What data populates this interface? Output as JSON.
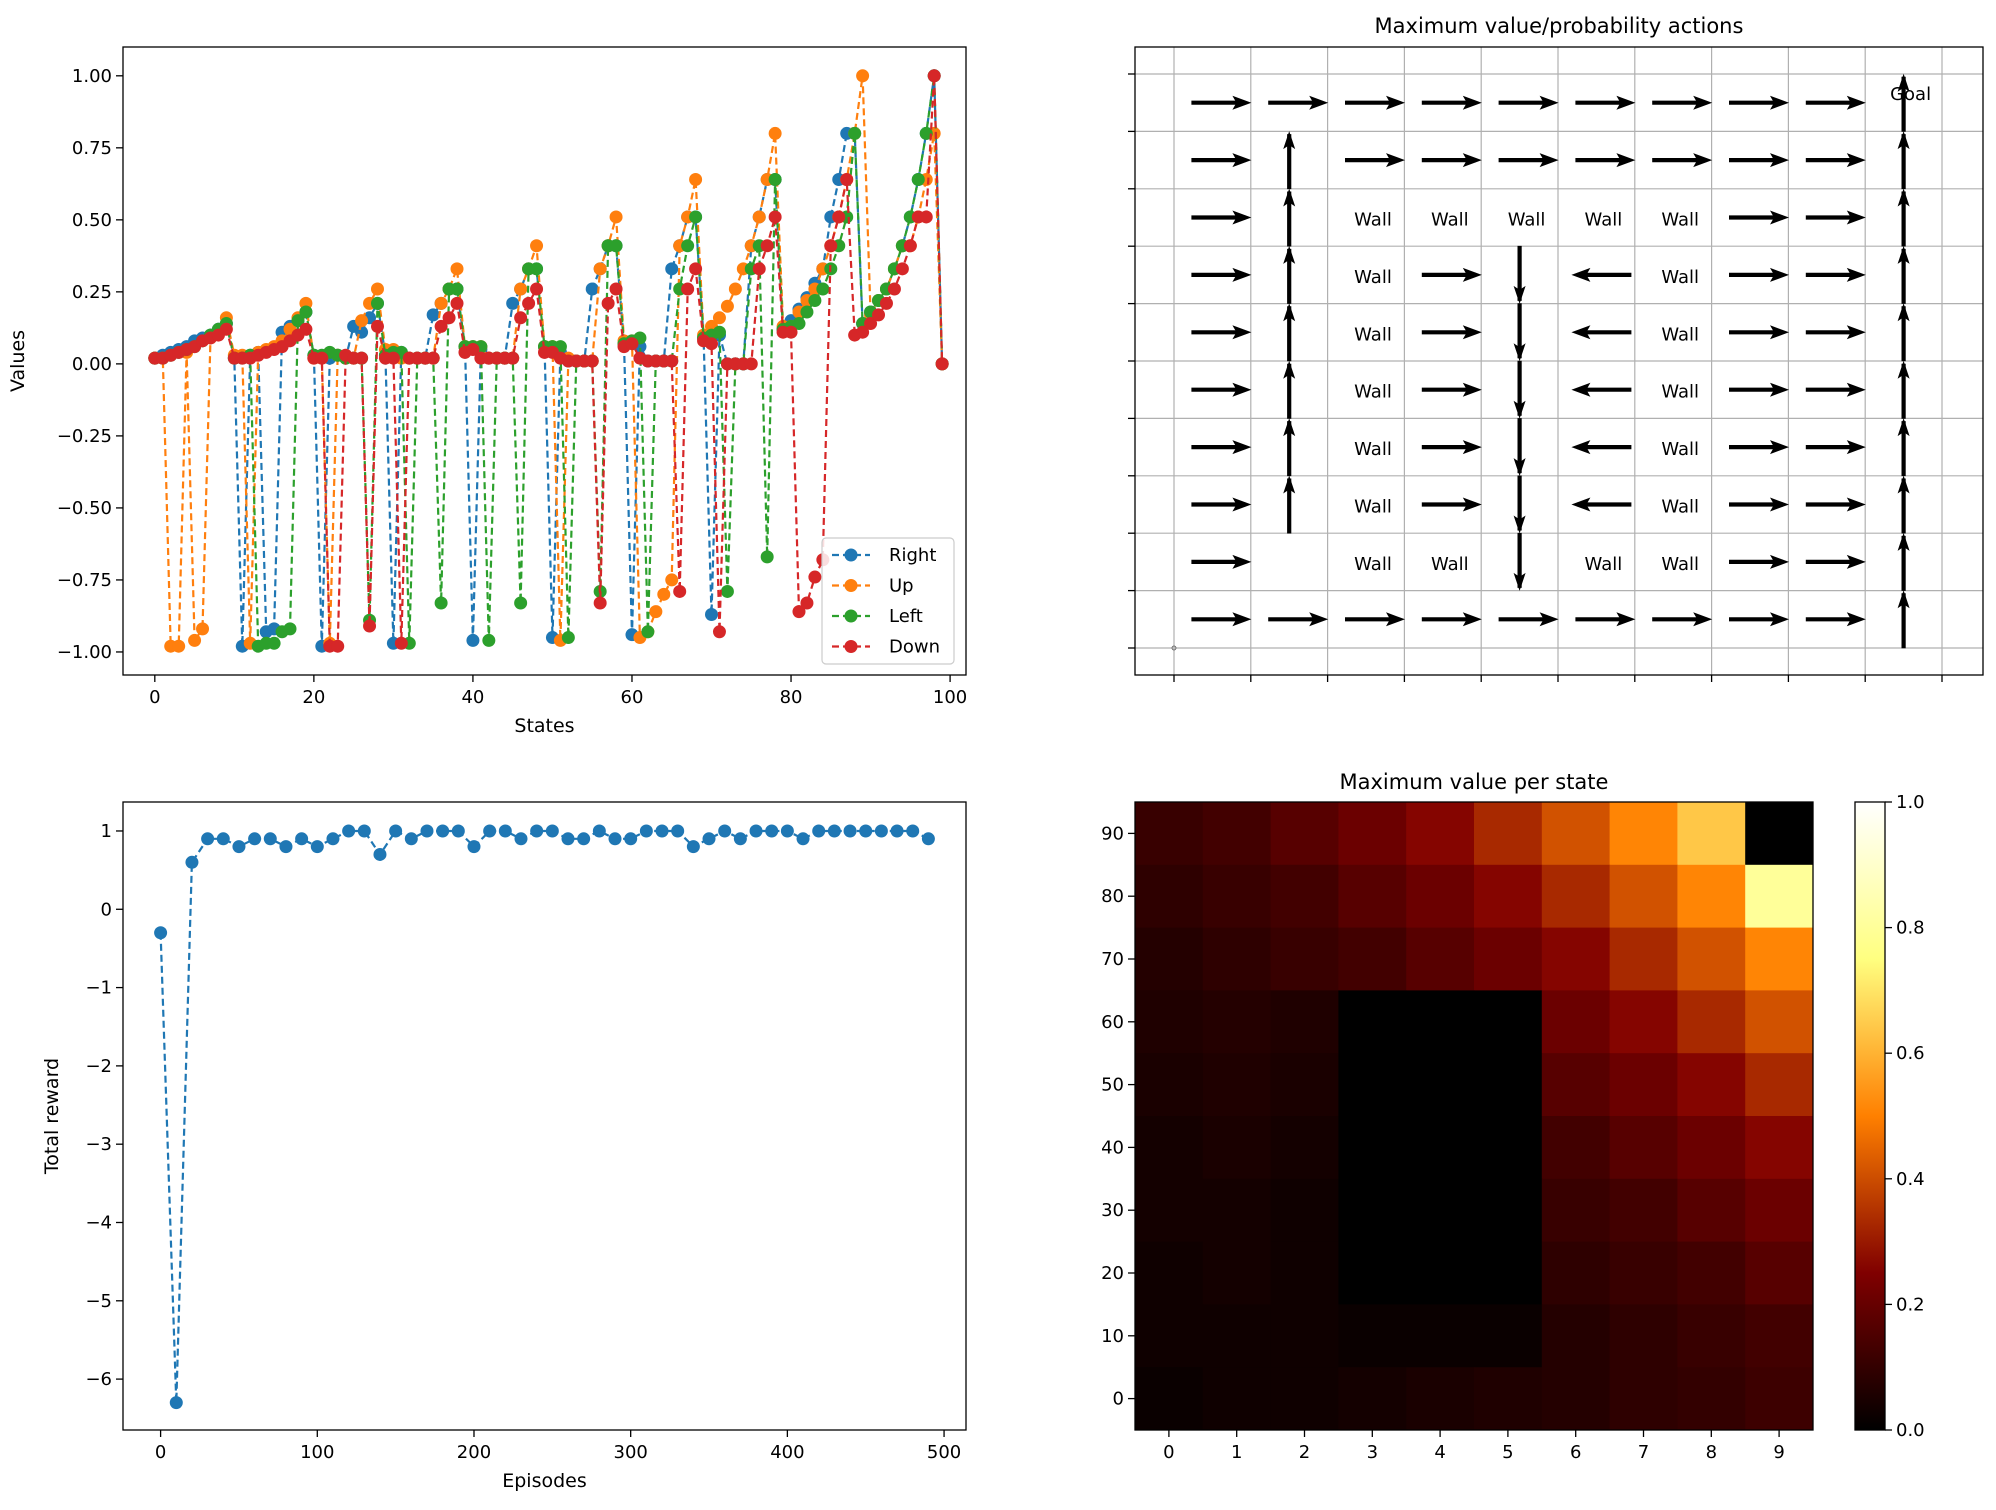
{
  "chart_data": [
    {
      "id": "state-values",
      "type": "line",
      "title": "",
      "xlabel": "States",
      "ylabel": "Values",
      "xlim": [
        -4,
        102
      ],
      "ylim": [
        -1.08,
        1.1
      ],
      "xticks": [
        0,
        20,
        40,
        60,
        80,
        100
      ],
      "xtick_labels": [
        "0",
        "20",
        "40",
        "60",
        "80",
        "100"
      ],
      "yticks": [
        -1.0,
        -0.75,
        -0.5,
        -0.25,
        0.0,
        0.25,
        0.5,
        0.75,
        1.0
      ],
      "ytick_labels": [
        "−1.00",
        "−0.75",
        "−0.50",
        "−0.25",
        "0.00",
        "0.25",
        "0.50",
        "0.75",
        "1.00"
      ],
      "legend_position": "bottom-right",
      "series": [
        {
          "name": "Right",
          "color": "#1f77b4",
          "values": [
            0.02,
            0.03,
            0.04,
            0.05,
            0.06,
            0.08,
            0.09,
            0.1,
            0.12,
            0.14,
            0.02,
            -0.98,
            0.03,
            0.04,
            -0.93,
            -0.92,
            0.11,
            0.13,
            0.15,
            0.18,
            0.03,
            -0.98,
            0.02,
            0.03,
            0.02,
            0.13,
            0.11,
            0.16,
            0.21,
            0.03,
            -0.97,
            0.04,
            0.02,
            0.02,
            0.02,
            0.17,
            0.21,
            0.26,
            0.26,
            0.06,
            -0.96,
            0.05,
            0.02,
            0.02,
            0.02,
            0.21,
            0.26,
            0.33,
            0.33,
            0.06,
            -0.95,
            0.04,
            0.01,
            0.01,
            0.01,
            0.26,
            0.33,
            0.41,
            0.41,
            0.07,
            -0.94,
            0.06,
            0.01,
            0.01,
            0.01,
            0.33,
            0.41,
            0.51,
            0.51,
            0.09,
            -0.87,
            0.1,
            0.0,
            0.0,
            0.0,
            0.41,
            0.51,
            0.64,
            0.64,
            0.12,
            0.15,
            0.19,
            0.23,
            0.28,
            0.33,
            0.51,
            0.64,
            0.8,
            0.8,
            0.14,
            0.18,
            0.22,
            0.26,
            0.33,
            0.41,
            0.51,
            0.64,
            0.8,
            1.0,
            0.0
          ]
        },
        {
          "name": "Up",
          "color": "#ff7f0e",
          "values": [
            0.02,
            0.02,
            -0.98,
            -0.98,
            0.04,
            -0.96,
            -0.92,
            0.09,
            0.11,
            0.16,
            0.03,
            0.03,
            -0.97,
            0.04,
            0.05,
            0.06,
            0.08,
            0.12,
            0.16,
            0.21,
            0.02,
            0.02,
            -0.97,
            0.03,
            0.02,
            0.02,
            0.15,
            0.21,
            0.26,
            0.05,
            0.05,
            0.02,
            0.02,
            0.02,
            0.02,
            0.02,
            0.21,
            0.26,
            0.33,
            0.06,
            0.06,
            0.06,
            0.02,
            0.02,
            0.02,
            0.02,
            0.26,
            0.33,
            0.41,
            0.06,
            0.06,
            -0.96,
            0.02,
            0.01,
            0.01,
            0.01,
            0.33,
            0.41,
            0.51,
            0.08,
            0.08,
            -0.95,
            -0.93,
            -0.86,
            -0.8,
            -0.75,
            0.41,
            0.51,
            0.64,
            0.1,
            0.13,
            0.16,
            0.2,
            0.26,
            0.33,
            0.41,
            0.51,
            0.64,
            0.8,
            0.13,
            0.13,
            0.18,
            0.22,
            0.26,
            0.33,
            0.41,
            0.51,
            0.64,
            0.8,
            1.0,
            0.17,
            0.22,
            0.26,
            0.33,
            0.41,
            0.41,
            0.51,
            0.64,
            0.8,
            0.0
          ]
        },
        {
          "name": "Left",
          "color": "#2ca02c",
          "values": [
            0.02,
            0.02,
            0.03,
            0.04,
            0.05,
            0.06,
            0.08,
            0.1,
            0.12,
            0.14,
            0.02,
            0.02,
            0.03,
            -0.98,
            -0.97,
            -0.97,
            -0.93,
            -0.92,
            0.15,
            0.18,
            0.03,
            0.03,
            0.04,
            0.03,
            0.02,
            0.02,
            0.02,
            -0.89,
            0.21,
            0.03,
            0.04,
            0.04,
            -0.97,
            0.02,
            0.02,
            0.02,
            -0.83,
            0.26,
            0.26,
            0.06,
            0.06,
            0.06,
            -0.96,
            0.02,
            0.02,
            0.02,
            -0.83,
            0.33,
            0.33,
            0.06,
            0.06,
            0.06,
            -0.95,
            0.01,
            0.01,
            0.01,
            -0.79,
            0.41,
            0.41,
            0.07,
            0.08,
            0.09,
            -0.93,
            0.01,
            0.01,
            0.01,
            0.26,
            0.41,
            0.51,
            0.09,
            0.1,
            0.11,
            -0.79,
            0.0,
            0.0,
            0.33,
            0.41,
            -0.67,
            0.64,
            0.12,
            0.13,
            0.14,
            0.18,
            0.22,
            0.26,
            0.33,
            0.41,
            0.51,
            0.8,
            0.14,
            0.18,
            0.22,
            0.26,
            0.33,
            0.41,
            0.51,
            0.64,
            0.8,
            1.0,
            0.0
          ]
        },
        {
          "name": "Down",
          "color": "#d62728",
          "values": [
            0.02,
            0.02,
            0.03,
            0.04,
            0.05,
            0.06,
            0.08,
            0.09,
            0.1,
            0.12,
            0.02,
            0.02,
            0.02,
            0.03,
            0.04,
            0.05,
            0.06,
            0.08,
            0.1,
            0.12,
            0.02,
            0.02,
            -0.98,
            -0.98,
            0.03,
            0.02,
            0.02,
            -0.91,
            0.13,
            0.02,
            0.02,
            -0.97,
            0.02,
            0.02,
            0.02,
            0.02,
            0.13,
            0.16,
            0.21,
            0.04,
            0.05,
            0.02,
            0.02,
            0.02,
            0.02,
            0.02,
            0.16,
            0.21,
            0.26,
            0.04,
            0.04,
            0.02,
            0.01,
            0.01,
            0.01,
            0.01,
            -0.83,
            0.21,
            0.26,
            0.06,
            0.07,
            0.02,
            0.01,
            0.01,
            0.01,
            0.01,
            -0.79,
            0.26,
            0.33,
            0.08,
            0.07,
            -0.93,
            0.0,
            0.0,
            0.0,
            0.0,
            0.33,
            0.41,
            0.51,
            0.11,
            0.11,
            -0.86,
            -0.83,
            -0.74,
            -0.68,
            0.41,
            0.51,
            0.64,
            0.1,
            0.11,
            0.14,
            0.17,
            0.21,
            0.26,
            0.33,
            0.41,
            0.51,
            0.51,
            1.0,
            0.0
          ]
        }
      ]
    },
    {
      "id": "policy-grid",
      "type": "other",
      "title": "Maximum value/probability actions",
      "goal_label": "Goal",
      "wall_label": "Wall",
      "rows": [
        "RRRRRRRRRG",
        "RURRRRRRRU",
        "RU#####RRU",
        "RU#RDL#RRU",
        "RU#RDL#RRU",
        "RU#RDL#RRU",
        "RU#RDL#RRU",
        "RU#RDL#RRU",
        "R.##D##RRU",
        "RRRRRRRRRU"
      ]
    },
    {
      "id": "episode-rewards",
      "type": "line",
      "title": "",
      "xlabel": "Episodes",
      "ylabel": "Total reward",
      "xlim": [
        -24,
        514
      ],
      "ylim": [
        -6.65,
        1.37
      ],
      "xticks": [
        0,
        100,
        200,
        300,
        400,
        500
      ],
      "xtick_labels": [
        "0",
        "100",
        "200",
        "300",
        "400",
        "500"
      ],
      "yticks": [
        -6,
        -5,
        -4,
        -3,
        -2,
        -1,
        0,
        1
      ],
      "ytick_labels": [
        "−6",
        "−5",
        "−4",
        "−3",
        "−2",
        "−1",
        "0",
        "1"
      ],
      "series": [
        {
          "name": "",
          "color": "#1f77b4",
          "x": [
            0,
            10,
            20,
            30,
            40,
            50,
            60,
            70,
            80,
            90,
            100,
            110,
            120,
            130,
            140,
            150,
            160,
            170,
            180,
            190,
            200,
            210,
            220,
            230,
            240,
            250,
            260,
            270,
            280,
            290,
            300,
            310,
            320,
            330,
            340,
            350,
            360,
            370,
            380,
            390,
            400,
            410,
            420,
            430,
            440,
            450,
            460,
            470,
            480,
            490
          ],
          "values": [
            -0.3,
            -6.3,
            0.6,
            0.9,
            0.9,
            0.8,
            0.9,
            0.9,
            0.8,
            0.9,
            0.8,
            0.9,
            1.0,
            1.0,
            0.7,
            1.0,
            0.9,
            1.0,
            1.0,
            1.0,
            0.8,
            1.0,
            1.0,
            0.9,
            1.0,
            1.0,
            0.9,
            0.9,
            1.0,
            0.9,
            0.9,
            1.0,
            1.0,
            1.0,
            0.8,
            0.9,
            1.0,
            0.9,
            1.0,
            1.0,
            1.0,
            0.9,
            1.0,
            1.0,
            1.0,
            1.0,
            1.0,
            1.0,
            1.0,
            0.9
          ]
        }
      ]
    },
    {
      "id": "state-heatmap",
      "type": "heatmap",
      "title": "Maximum value per state",
      "colormap": "afmhot",
      "xtick_labels": [
        "0",
        "1",
        "2",
        "3",
        "4",
        "5",
        "6",
        "7",
        "8",
        "9"
      ],
      "ytick_labels": [
        "0",
        "10",
        "20",
        "30",
        "40",
        "50",
        "60",
        "70",
        "80",
        "90"
      ],
      "colorbar_ticks": [
        0.0,
        0.2,
        0.4,
        0.6,
        0.8,
        1.0
      ],
      "colorbar_tick_labels": [
        "0.0",
        "0.2",
        "0.4",
        "0.6",
        "0.8",
        "1.0"
      ],
      "clim": [
        0.0,
        1.0
      ],
      "values_top_row_first": [
        [
          0.11,
          0.13,
          0.17,
          0.21,
          0.26,
          0.33,
          0.41,
          0.51,
          0.64,
          0.0
        ],
        [
          0.09,
          0.11,
          0.13,
          0.17,
          0.21,
          0.26,
          0.33,
          0.41,
          0.51,
          0.8
        ],
        [
          0.07,
          0.09,
          0.11,
          0.13,
          0.17,
          0.21,
          0.26,
          0.33,
          0.41,
          0.51
        ],
        [
          0.06,
          0.07,
          0.06,
          0.0,
          0.0,
          0.0,
          0.21,
          0.26,
          0.33,
          0.41
        ],
        [
          0.05,
          0.06,
          0.05,
          0.0,
          0.0,
          0.0,
          0.17,
          0.21,
          0.26,
          0.33
        ],
        [
          0.04,
          0.05,
          0.04,
          0.0,
          0.0,
          0.0,
          0.13,
          0.17,
          0.21,
          0.26
        ],
        [
          0.04,
          0.04,
          0.03,
          0.0,
          0.0,
          0.0,
          0.11,
          0.13,
          0.17,
          0.21
        ],
        [
          0.03,
          0.04,
          0.03,
          0.0,
          0.0,
          0.0,
          0.09,
          0.11,
          0.13,
          0.17
        ],
        [
          0.03,
          0.03,
          0.03,
          0.02,
          0.02,
          0.02,
          0.07,
          0.09,
          0.11,
          0.13
        ],
        [
          0.02,
          0.03,
          0.03,
          0.04,
          0.05,
          0.06,
          0.07,
          0.09,
          0.1,
          0.12
        ]
      ]
    }
  ]
}
